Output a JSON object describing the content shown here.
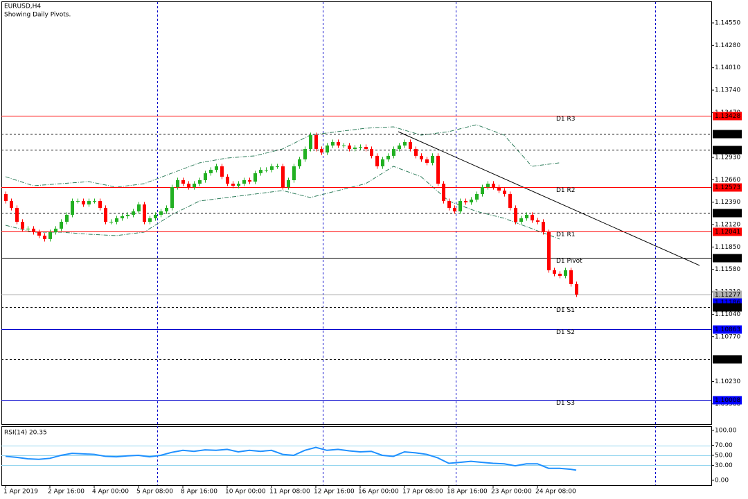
{
  "chart_data": [
    {
      "type": "candlestick",
      "title": "EURUSD,H4",
      "subtitle": "Showing Daily Pivots.",
      "up_color": "#22b022",
      "down_color": "#ff0000",
      "xlim": [
        -0.75,
        127.375
      ],
      "xticks": [
        {
          "value": 0,
          "label": "1 Apr 2019"
        },
        {
          "value": 8,
          "label": "2 Apr 16:00"
        },
        {
          "value": 16,
          "label": "4 Apr 00:00"
        },
        {
          "value": 24,
          "label": "5 Apr 08:00"
        },
        {
          "value": 32,
          "label": "8 Apr 16:00"
        },
        {
          "value": 40,
          "label": "10 Apr 00:00"
        },
        {
          "value": 48,
          "label": "11 Apr 08:00"
        },
        {
          "value": 56,
          "label": "12 Apr 16:00"
        },
        {
          "value": 64,
          "label": "16 Apr 00:00"
        },
        {
          "value": 72,
          "label": "17 Apr 08:00"
        },
        {
          "value": 80,
          "label": "18 Apr 16:00"
        },
        {
          "value": 88,
          "label": "23 Apr 00:00"
        },
        {
          "value": 96,
          "label": "24 Apr 08:00"
        }
      ],
      "ylim": [
        1.09716,
        1.14809
      ],
      "yticks": [
        {
          "value": 1.1455,
          "label": "1.14550"
        },
        {
          "value": 1.1428,
          "label": "1.14280"
        },
        {
          "value": 1.1401,
          "label": "1.14010"
        },
        {
          "value": 1.1374,
          "label": "1.13740"
        },
        {
          "value": 1.1347,
          "label": "1.13470"
        },
        {
          "value": 1.1293,
          "label": "1.12930"
        },
        {
          "value": 1.1266,
          "label": "1.12660"
        },
        {
          "value": 1.1239,
          "label": "1.12390"
        },
        {
          "value": 1.1212,
          "label": "1.12120"
        },
        {
          "value": 1.1185,
          "label": "1.11850"
        },
        {
          "value": 1.1158,
          "label": "1.11580"
        },
        {
          "value": 1.1131,
          "label": "1.11310"
        },
        {
          "value": 1.1104,
          "label": "1.11040"
        },
        {
          "value": 1.1077,
          "label": "1.10770"
        },
        {
          "value": 1.1023,
          "label": "1.10230"
        },
        {
          "value": 1.0996,
          "label": "1.09960"
        }
      ],
      "levels": [
        {
          "name": "D1 R3",
          "value": 1.13428,
          "label": "1.13428",
          "color": "#ff0000",
          "style": "solid",
          "box": "#ff0000"
        },
        {
          "value": 1.13213,
          "label": "1.13213",
          "color": "#000000",
          "style": "dashed",
          "box": "#000000"
        },
        {
          "value": 1.13025,
          "label": "1.13025",
          "color": "#000000",
          "style": "dashed",
          "box": "#000000"
        },
        {
          "name": "D1 R2",
          "value": 1.12573,
          "label": "1.12573",
          "color": "#ff0000",
          "style": "solid",
          "box": "#ff0000"
        },
        {
          "value": 1.12259,
          "label": "1.12259",
          "color": "#000000",
          "style": "dashed",
          "box": "#000000"
        },
        {
          "name": "D1 R1",
          "value": 1.12041,
          "label": "1.12041",
          "color": "#ff0000",
          "style": "solid",
          "box": "#ff0000"
        },
        {
          "name": "D1 Pivot",
          "value": 1.11718,
          "label": "1.11718",
          "color": "#000000",
          "style": "solid",
          "box": "#000000"
        },
        {
          "value": 1.11277,
          "label": "1.11277",
          "color": "#a0a0a0",
          "style": "solid",
          "box": "#b0b0b0"
        },
        {
          "value": 1.11186,
          "label": "1.11186",
          "color": "#0000ff",
          "style": "none",
          "box": "#0000ff"
        },
        {
          "name": "D1 S1",
          "value": 1.11127,
          "label": "1.11127",
          "color": "#000000",
          "style": "dashed",
          "box": "#000000"
        },
        {
          "name": "D1 S2",
          "value": 1.10863,
          "label": "1.10863",
          "color": "#0000cc",
          "style": "solid",
          "box": "#0000ff"
        },
        {
          "value": 1.105,
          "label": "1.10500",
          "color": "#000000",
          "style": "dashed",
          "box": "#000000"
        },
        {
          "name": "D1 S3",
          "value": 1.10008,
          "label": "1.10008",
          "color": "#0000cc",
          "style": "solid",
          "box": "#0000ff"
        }
      ],
      "bands": {
        "color": "#2e7d5b",
        "series": [
          {
            "x": [
              0,
              5,
              10,
              15,
              20,
              25,
              30,
              35,
              40,
              45,
              50,
              55,
              60,
              65,
              70,
              75,
              80,
              85,
              90,
              95,
              100
            ],
            "values": [
              1.12697,
              1.12588,
              1.12613,
              1.12638,
              1.12571,
              1.12613,
              1.12739,
              1.12864,
              1.12922,
              1.12948,
              1.13031,
              1.13198,
              1.1324,
              1.13281,
              1.13298,
              1.13198,
              1.1324,
              1.13323,
              1.13198,
              1.12822,
              1.12864
            ]
          },
          {
            "x": [
              0,
              5,
              10,
              15,
              20,
              25,
              30,
              35,
              40,
              45,
              50,
              55,
              60,
              65,
              70,
              75,
              80,
              85,
              90,
              95,
              100
            ],
            "values": [
              1.12112,
              1.12029,
              1.12029,
              1.12004,
              1.11987,
              1.12029,
              1.12238,
              1.12404,
              1.12446,
              1.12488,
              1.1253,
              1.12446,
              1.1253,
              1.12613,
              1.12822,
              1.12697,
              1.12404,
              1.12279,
              1.12196,
              1.12071,
              1.11946
            ]
          }
        ]
      },
      "ohlc": [
        [
          1.12488,
          1.12518,
          1.12374,
          1.12404
        ],
        [
          1.12404,
          1.12434,
          1.12291,
          1.12321
        ],
        [
          1.12321,
          1.12351,
          1.12124,
          1.12154
        ],
        [
          1.12154,
          1.12184,
          1.12041,
          1.12071
        ],
        [
          1.12071,
          1.12101,
          1.12041,
          1.12071
        ],
        [
          1.12071,
          1.12101,
          1.11999,
          1.12029
        ],
        [
          1.12029,
          1.12059,
          1.11957,
          1.11987
        ],
        [
          1.11987,
          1.12017,
          1.11916,
          1.11946
        ],
        [
          1.11946,
          1.12059,
          1.11916,
          1.12029
        ],
        [
          1.12029,
          1.12101,
          1.11999,
          1.12071
        ],
        [
          1.12071,
          1.12184,
          1.12041,
          1.12154
        ],
        [
          1.12154,
          1.12268,
          1.12124,
          1.12238
        ],
        [
          1.12238,
          1.12434,
          1.12208,
          1.12404
        ],
        [
          1.12404,
          1.12434,
          1.12374,
          1.12404
        ],
        [
          1.12404,
          1.12434,
          1.12333,
          1.12363
        ],
        [
          1.12363,
          1.12434,
          1.12333,
          1.12404
        ],
        [
          1.12404,
          1.12434,
          1.12374,
          1.12404
        ],
        [
          1.12404,
          1.12434,
          1.12291,
          1.12321
        ],
        [
          1.12321,
          1.12351,
          1.12124,
          1.12154
        ],
        [
          1.12154,
          1.12184,
          1.12124,
          1.12154
        ],
        [
          1.12154,
          1.12226,
          1.12124,
          1.12196
        ],
        [
          1.12196,
          1.12251,
          1.12166,
          1.12221
        ],
        [
          1.12221,
          1.12268,
          1.12191,
          1.12238
        ],
        [
          1.12238,
          1.12309,
          1.12208,
          1.12279
        ],
        [
          1.12279,
          1.12393,
          1.12249,
          1.12363
        ],
        [
          1.12363,
          1.12393,
          1.12124,
          1.12154
        ],
        [
          1.12154,
          1.12226,
          1.12124,
          1.12196
        ],
        [
          1.12196,
          1.12268,
          1.12166,
          1.12238
        ],
        [
          1.12238,
          1.12309,
          1.12208,
          1.12279
        ],
        [
          1.12279,
          1.12351,
          1.12249,
          1.12321
        ],
        [
          1.12321,
          1.12601,
          1.12291,
          1.12571
        ],
        [
          1.12571,
          1.12685,
          1.12541,
          1.12655
        ],
        [
          1.12655,
          1.12685,
          1.12583,
          1.12613
        ],
        [
          1.12613,
          1.12643,
          1.12541,
          1.12571
        ],
        [
          1.12571,
          1.12643,
          1.12541,
          1.12613
        ],
        [
          1.12613,
          1.12685,
          1.12583,
          1.12655
        ],
        [
          1.12655,
          1.12769,
          1.12625,
          1.12739
        ],
        [
          1.12739,
          1.1281,
          1.12709,
          1.1278
        ],
        [
          1.1278,
          1.12852,
          1.1275,
          1.12822
        ],
        [
          1.12822,
          1.12852,
          1.12667,
          1.12697
        ],
        [
          1.12697,
          1.12727,
          1.12583,
          1.12613
        ],
        [
          1.12613,
          1.12643,
          1.12558,
          1.12588
        ],
        [
          1.12588,
          1.12643,
          1.12558,
          1.12613
        ],
        [
          1.12613,
          1.12685,
          1.12583,
          1.12655
        ],
        [
          1.12655,
          1.12685,
          1.12608,
          1.12638
        ],
        [
          1.12638,
          1.12769,
          1.12608,
          1.12739
        ],
        [
          1.12739,
          1.1281,
          1.12709,
          1.1278
        ],
        [
          1.1278,
          1.1281,
          1.1275,
          1.1278
        ],
        [
          1.1278,
          1.12852,
          1.1275,
          1.12822
        ],
        [
          1.12822,
          1.12852,
          1.12792,
          1.12822
        ],
        [
          1.12822,
          1.12852,
          1.12541,
          1.12571
        ],
        [
          1.12571,
          1.12685,
          1.12541,
          1.12655
        ],
        [
          1.12655,
          1.12852,
          1.12625,
          1.12822
        ],
        [
          1.12822,
          1.12936,
          1.12792,
          1.12906
        ],
        [
          1.12906,
          1.13061,
          1.12876,
          1.13031
        ],
        [
          1.13031,
          1.13228,
          1.13001,
          1.13198
        ],
        [
          1.13198,
          1.13228,
          1.13001,
          1.13031
        ],
        [
          1.13031,
          1.13061,
          1.12959,
          1.12989
        ],
        [
          1.12989,
          1.13103,
          1.12959,
          1.13073
        ],
        [
          1.13073,
          1.13144,
          1.13043,
          1.13114
        ],
        [
          1.13114,
          1.13144,
          1.13043,
          1.13073
        ],
        [
          1.13073,
          1.13103,
          1.13043,
          1.13073
        ],
        [
          1.13073,
          1.13103,
          1.13001,
          1.13031
        ],
        [
          1.13031,
          1.13078,
          1.13001,
          1.13048
        ],
        [
          1.13048,
          1.13086,
          1.13018,
          1.13056
        ],
        [
          1.13056,
          1.13086,
          1.13001,
          1.13031
        ],
        [
          1.13031,
          1.13061,
          1.12918,
          1.12948
        ],
        [
          1.12948,
          1.12978,
          1.12792,
          1.12822
        ],
        [
          1.12822,
          1.12936,
          1.12792,
          1.12906
        ],
        [
          1.12906,
          1.12978,
          1.12876,
          1.12948
        ],
        [
          1.12948,
          1.13061,
          1.12918,
          1.13031
        ],
        [
          1.13031,
          1.13103,
          1.13001,
          1.13073
        ],
        [
          1.13073,
          1.13144,
          1.13043,
          1.13114
        ],
        [
          1.13114,
          1.13144,
          1.13001,
          1.13031
        ],
        [
          1.13031,
          1.13061,
          1.12918,
          1.12948
        ],
        [
          1.12948,
          1.12978,
          1.12876,
          1.12906
        ],
        [
          1.12906,
          1.12936,
          1.12834,
          1.12864
        ],
        [
          1.12864,
          1.12978,
          1.12834,
          1.12948
        ],
        [
          1.12948,
          1.12978,
          1.12583,
          1.12613
        ],
        [
          1.12613,
          1.12643,
          1.12374,
          1.12404
        ],
        [
          1.12404,
          1.12434,
          1.12291,
          1.12321
        ],
        [
          1.12321,
          1.12351,
          1.12249,
          1.12279
        ],
        [
          1.12279,
          1.12434,
          1.12249,
          1.12404
        ],
        [
          1.12404,
          1.12434,
          1.12358,
          1.12388
        ],
        [
          1.12388,
          1.12451,
          1.12358,
          1.12421
        ],
        [
          1.12421,
          1.12518,
          1.12391,
          1.12488
        ],
        [
          1.12488,
          1.12601,
          1.12458,
          1.12571
        ],
        [
          1.12571,
          1.12643,
          1.12541,
          1.12613
        ],
        [
          1.12613,
          1.12643,
          1.12541,
          1.12571
        ],
        [
          1.12571,
          1.12601,
          1.125,
          1.1253
        ],
        [
          1.1253,
          1.1256,
          1.12458,
          1.12488
        ],
        [
          1.12488,
          1.12518,
          1.12291,
          1.12321
        ],
        [
          1.12321,
          1.12351,
          1.12124,
          1.12154
        ],
        [
          1.12154,
          1.12226,
          1.12124,
          1.12196
        ],
        [
          1.12196,
          1.12268,
          1.12166,
          1.12238
        ],
        [
          1.12238,
          1.12268,
          1.12141,
          1.12171
        ],
        [
          1.12171,
          1.12201,
          1.12124,
          1.12154
        ],
        [
          1.12154,
          1.12184,
          1.11999,
          1.12029
        ],
        [
          1.12029,
          1.12059,
          1.1154,
          1.1157
        ],
        [
          1.1157,
          1.116,
          1.11498,
          1.11528
        ],
        [
          1.11528,
          1.11558,
          1.11473,
          1.11503
        ],
        [
          1.11503,
          1.116,
          1.11473,
          1.1157
        ],
        [
          1.1157,
          1.116,
          1.11373,
          1.11403
        ],
        [
          1.11403,
          1.11433,
          1.11248,
          1.11278
        ]
      ]
    },
    {
      "type": "line",
      "title": "RSI(14) 20.35",
      "color": "#1e90ff",
      "xlim": [
        -0.75,
        127.375
      ],
      "x": [
        0,
        2,
        4,
        6,
        8,
        10,
        12,
        14,
        16,
        18,
        20,
        22,
        24,
        26,
        28,
        30,
        32,
        34,
        36,
        38,
        40,
        42,
        44,
        46,
        48,
        50,
        52,
        54,
        56,
        58,
        60,
        62,
        64,
        66,
        68,
        70,
        72,
        74,
        76,
        78,
        80,
        82,
        84,
        86,
        88,
        90,
        92,
        94,
        96,
        98,
        100,
        102,
        103
      ],
      "values": [
        48,
        46,
        43,
        42,
        44,
        50,
        54,
        53,
        52,
        48,
        47,
        49,
        50,
        47,
        50,
        56,
        60,
        58,
        61,
        60,
        62,
        57,
        60,
        58,
        60,
        52,
        50,
        60,
        66,
        60,
        62,
        59,
        57,
        58,
        50,
        48,
        57,
        55,
        52,
        45,
        34,
        36,
        38,
        36,
        34,
        33,
        29,
        33,
        33,
        24,
        24,
        22,
        20.35
      ],
      "ylim": [
        -9.72,
        108.33
      ],
      "yticks": [
        {
          "value": 100,
          "label": "100.00"
        },
        {
          "value": 70,
          "label": "70.00"
        },
        {
          "value": 50,
          "label": "50.00"
        },
        {
          "value": 30,
          "label": "30.00"
        },
        {
          "value": 0,
          "label": "0.00"
        }
      ],
      "levels": [
        70,
        50,
        30
      ]
    }
  ]
}
